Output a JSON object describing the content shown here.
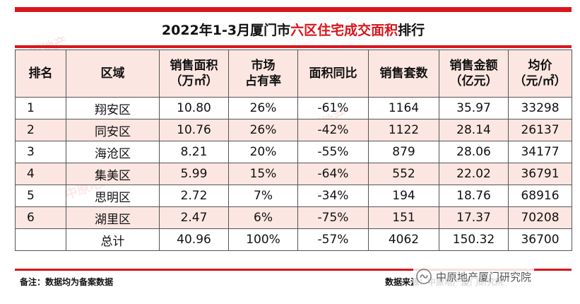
{
  "title": {
    "prefix": "2022年1-3月厦门市",
    "highlight": "六区住宅成交面积",
    "suffix": "排行"
  },
  "columns": [
    [
      "排名"
    ],
    [
      "区域"
    ],
    [
      "销售面积",
      "（万㎡）"
    ],
    [
      "市场",
      "占有率"
    ],
    [
      "面积同比"
    ],
    [
      "销售套数"
    ],
    [
      "销售金额",
      "（亿元）"
    ],
    [
      "均价",
      "（元/㎡）"
    ]
  ],
  "rows": [
    [
      "1",
      "翔安区",
      "10.80",
      "26%",
      "-61%",
      "1164",
      "35.97",
      "33298"
    ],
    [
      "2",
      "同安区",
      "10.76",
      "26%",
      "-42%",
      "1122",
      "28.14",
      "26137"
    ],
    [
      "3",
      "海沧区",
      "8.21",
      "20%",
      "-55%",
      "879",
      "28.06",
      "34177"
    ],
    [
      "4",
      "集美区",
      "5.99",
      "15%",
      "-64%",
      "552",
      "22.02",
      "36791"
    ],
    [
      "5",
      "思明区",
      "2.72",
      "7%",
      "-34%",
      "194",
      "18.76",
      "68916"
    ],
    [
      "6",
      "湖里区",
      "2.47",
      "6%",
      "-75%",
      "151",
      "17.37",
      "70208"
    ],
    [
      "",
      "总计",
      "40.96",
      "100%",
      "-57%",
      "4062",
      "150.32",
      "36700"
    ]
  ],
  "footer": {
    "note": "备注：数据均为备案数据",
    "source": "数据来源：中原地产厦门研究院"
  },
  "watermark": {
    "text": "中原地产"
  },
  "brand": {
    "text": "中原地产厦门研究院",
    "icon": "wechat-channel-icon"
  },
  "colors": {
    "accent": "#d8161c",
    "band": "#fbe6e1"
  }
}
